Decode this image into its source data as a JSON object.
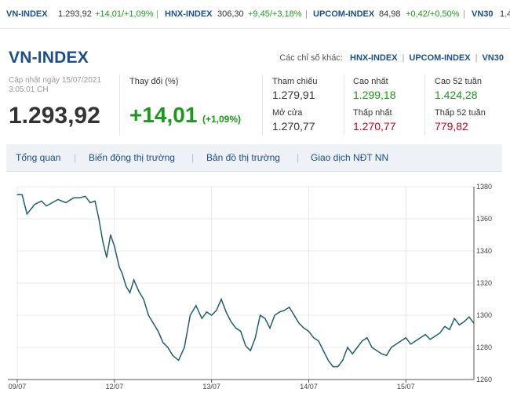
{
  "ticker": [
    {
      "name": "VN-INDEX",
      "price": "1.293,92",
      "change": "+14,01/+1,09%"
    },
    {
      "name": "HNX-INDEX",
      "price": "306,30",
      "change": "+9,45/+3,18%"
    },
    {
      "name": "UPCOM-INDEX",
      "price": "84,98",
      "change": "+0,42/+0,50%"
    },
    {
      "name": "VN30",
      "price": "1.4",
      "change": ""
    }
  ],
  "header": {
    "title": "VN-INDEX",
    "others_label": "Các chỉ số khác:",
    "others": [
      "HNX-INDEX",
      "UPCOM-INDEX",
      "VN30"
    ]
  },
  "summary": {
    "updated_line1": "Cập nhật ngày 15/07/2021",
    "updated_line2": "3:05:01 CH",
    "price": "1.293,92",
    "change_label": "Thay đổi (%)",
    "change_value": "+14,01",
    "change_pct": "(+1,09%)"
  },
  "stats": {
    "ref_label": "Tham chiếu",
    "ref_value": "1.279,91",
    "open_label": "Mở cửa",
    "open_value": "1.270,77",
    "high_label": "Cao nhất",
    "high_value": "1.299,18",
    "low_label": "Thấp nhất",
    "low_value": "1.270,77",
    "high52_label": "Cao 52 tuần",
    "high52_value": "1.424,28",
    "low52_label": "Thấp 52 tuần",
    "low52_value": "779,82"
  },
  "tabs": [
    "Tổng quan",
    "Biến động thị trường",
    "Bản đồ thị trường",
    "Giao dịch NĐT NN"
  ],
  "colors": {
    "line": "#1f5f6e",
    "brand": "#1a4f8b",
    "up": "#1a9a1a",
    "down": "#d0021b"
  },
  "chart_data": {
    "type": "line",
    "title": "",
    "xlabel": "",
    "ylabel": "",
    "ylim": [
      1260,
      1380
    ],
    "y_ticks": [
      1260,
      1280,
      1300,
      1320,
      1340,
      1360,
      1380
    ],
    "x_ticks": [
      "09/07",
      "12/07",
      "13/07",
      "14/07",
      "15/07"
    ],
    "x_tick_pos": [
      0,
      1,
      2,
      3,
      4
    ],
    "series": [
      {
        "name": "VN-INDEX",
        "x": [
          0,
          0.05,
          0.1,
          0.18,
          0.25,
          0.3,
          0.36,
          0.42,
          0.5,
          0.58,
          0.64,
          0.7,
          0.75,
          0.8,
          0.84,
          0.88,
          0.92,
          0.96,
          1.0,
          1.05,
          1.08,
          1.12,
          1.16,
          1.2,
          1.25,
          1.3,
          1.35,
          1.4,
          1.45,
          1.5,
          1.55,
          1.6,
          1.66,
          1.72,
          1.78,
          1.84,
          1.9,
          1.95,
          2.0,
          2.05,
          2.1,
          2.15,
          2.2,
          2.25,
          2.3,
          2.35,
          2.4,
          2.45,
          2.5,
          2.55,
          2.6,
          2.65,
          2.7,
          2.75,
          2.8,
          2.85,
          2.9,
          2.95,
          3.0,
          3.05,
          3.1,
          3.15,
          3.2,
          3.25,
          3.3,
          3.35,
          3.4,
          3.45,
          3.5,
          3.55,
          3.6,
          3.65,
          3.7,
          3.75,
          3.8,
          3.85,
          3.9,
          3.95,
          4.0,
          4.05,
          4.1,
          4.15,
          4.2,
          4.25,
          4.3,
          4.35,
          4.4,
          4.45,
          4.5,
          4.55,
          4.6,
          4.65,
          4.7
        ],
        "values": [
          1375,
          1375,
          1363,
          1369,
          1371,
          1368,
          1370,
          1372,
          1370,
          1373,
          1373,
          1374,
          1370,
          1371,
          1360,
          1346,
          1336,
          1350,
          1343,
          1330,
          1326,
          1318,
          1314,
          1322,
          1315,
          1310,
          1300,
          1295,
          1290,
          1283,
          1280,
          1275,
          1272,
          1280,
          1300,
          1306,
          1298,
          1302,
          1300,
          1303,
          1310,
          1302,
          1296,
          1292,
          1290,
          1281,
          1278,
          1286,
          1300,
          1298,
          1292,
          1300,
          1302,
          1303,
          1305,
          1300,
          1295,
          1292,
          1290,
          1286,
          1284,
          1278,
          1272,
          1268,
          1268,
          1272,
          1280,
          1276,
          1280,
          1284,
          1286,
          1280,
          1278,
          1276,
          1275,
          1280,
          1282,
          1284,
          1286,
          1282,
          1284,
          1286,
          1288,
          1285,
          1287,
          1289,
          1293,
          1291,
          1298,
          1294,
          1296,
          1299,
          1295
        ]
      }
    ]
  }
}
